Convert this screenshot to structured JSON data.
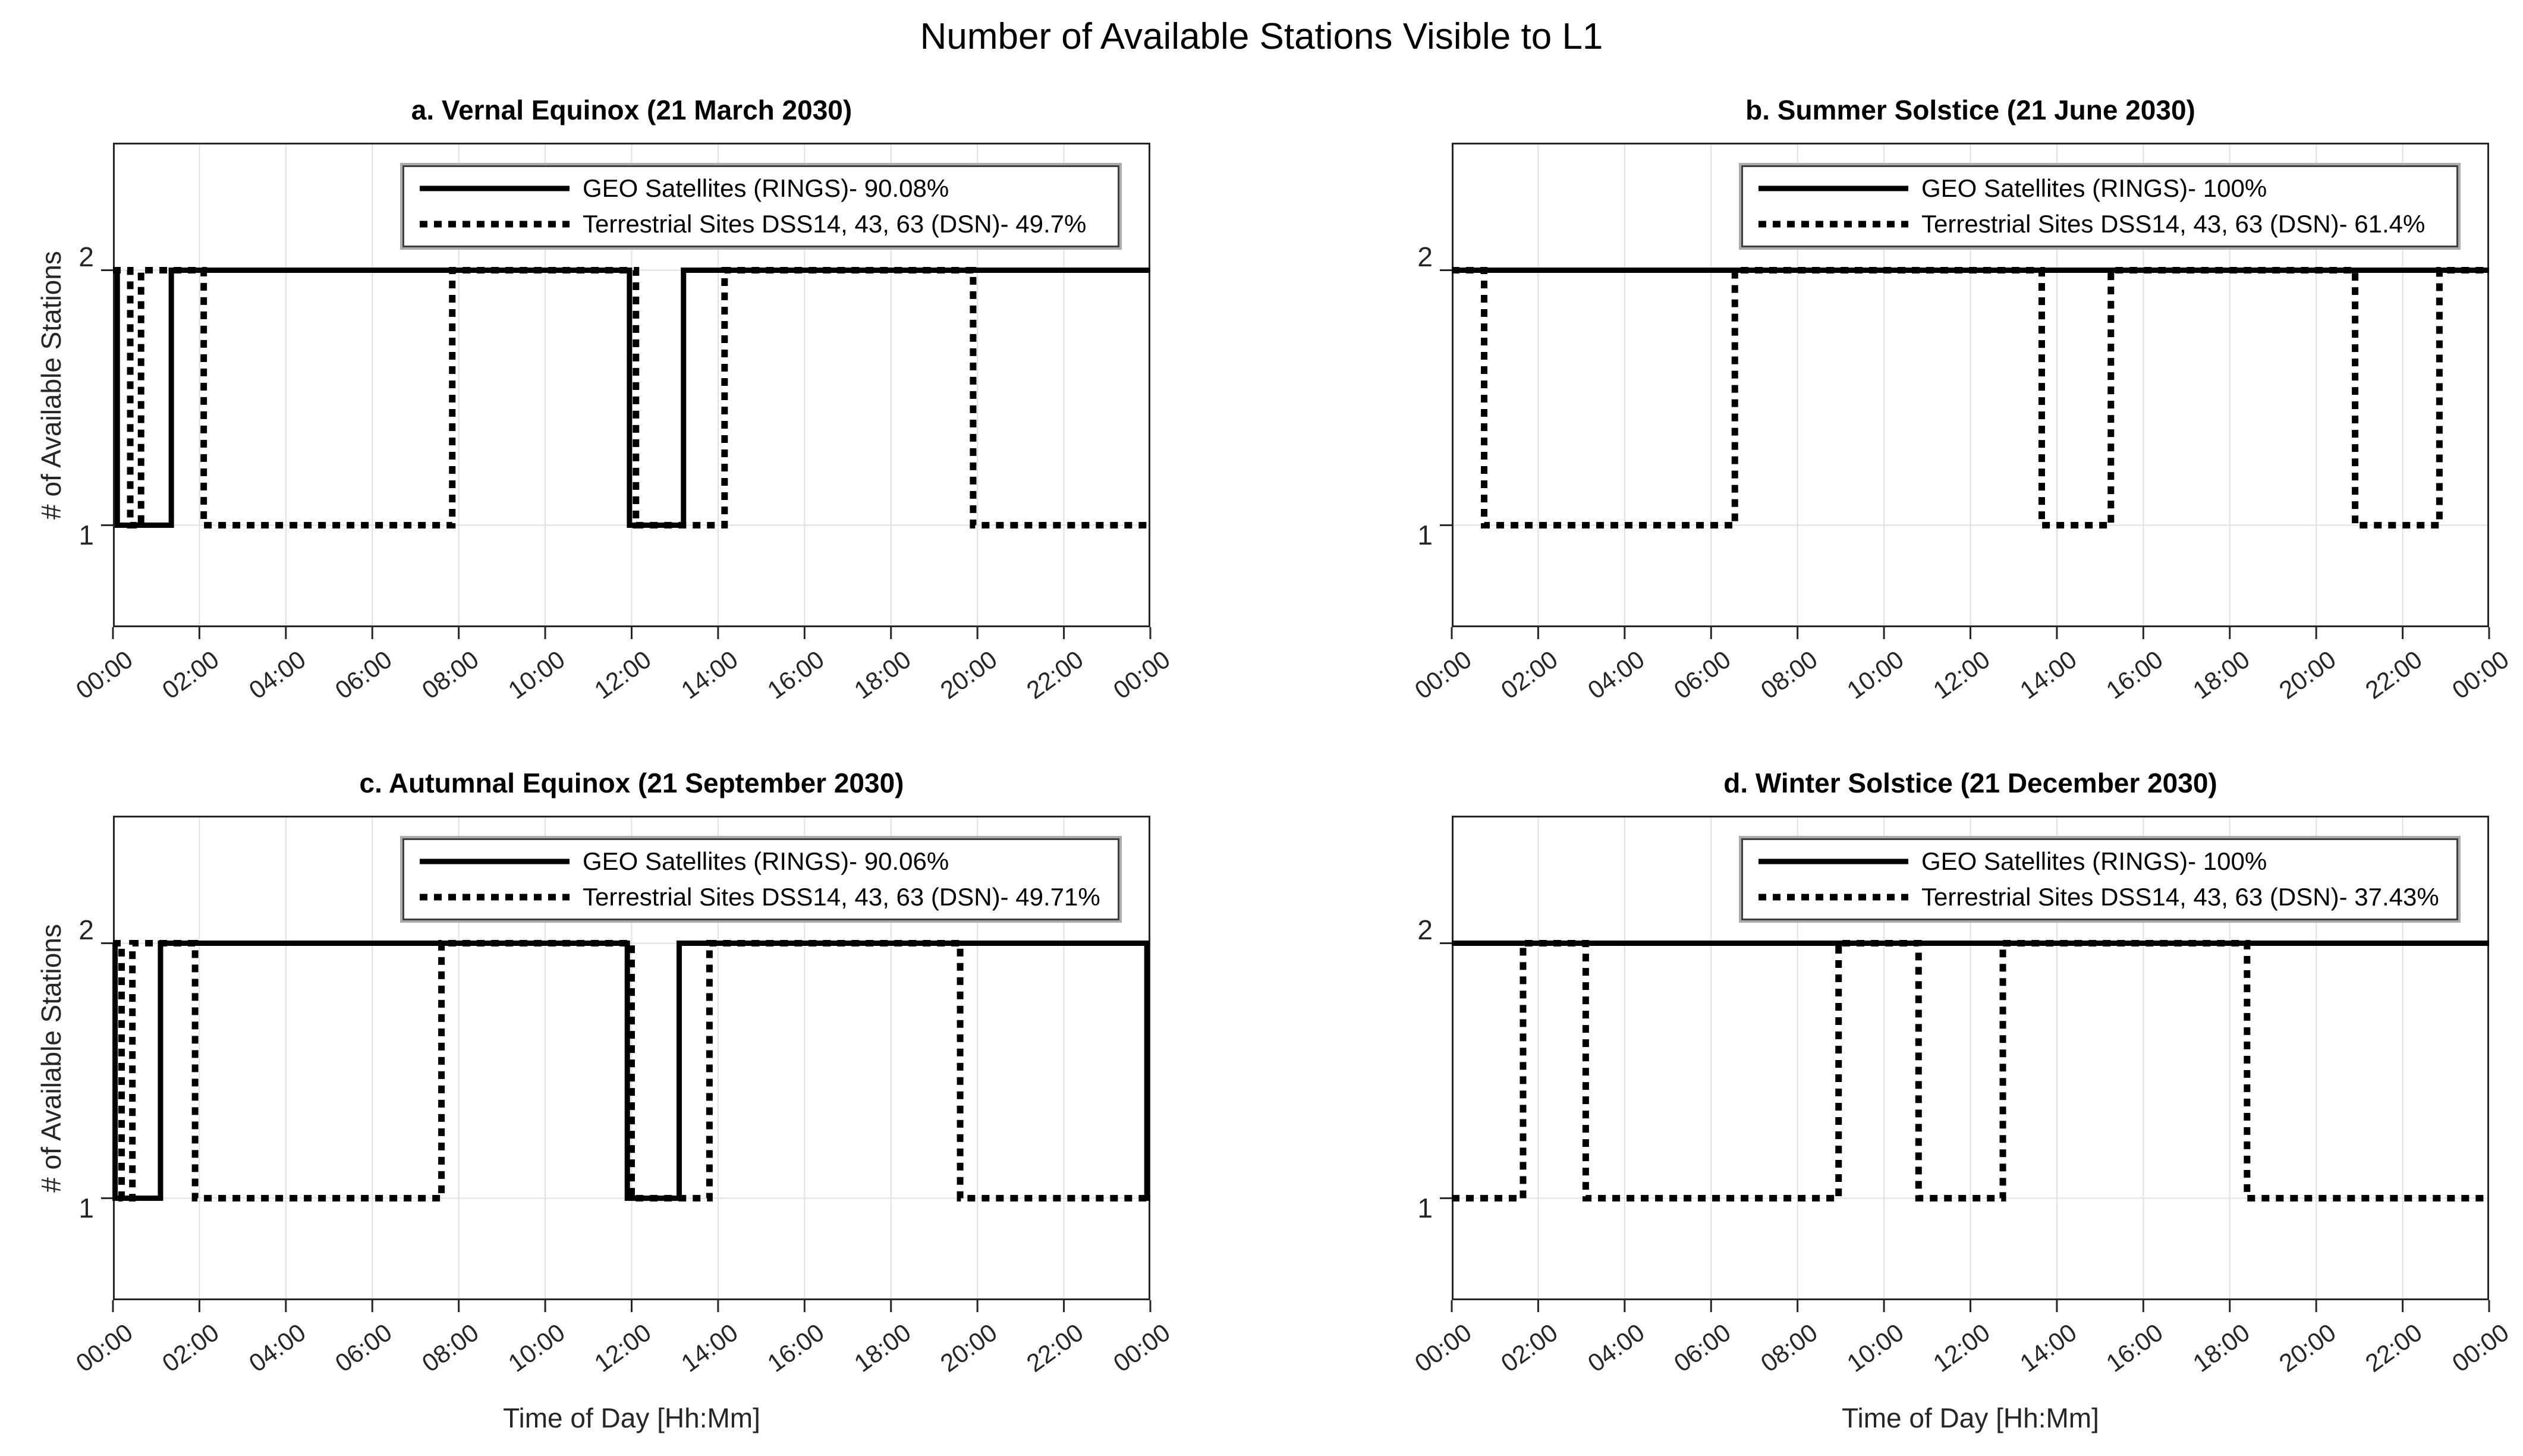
{
  "figure_title": "Number of Available Stations Visible to L1",
  "axes": {
    "x_label": "Time of Day [Hh:Mm]",
    "y_label": "# of Available Stations",
    "x_tick_labels": [
      "00:00",
      "02:00",
      "04:00",
      "06:00",
      "08:00",
      "10:00",
      "12:00",
      "14:00",
      "16:00",
      "18:00",
      "20:00",
      "22:00",
      "00:00"
    ],
    "y_tick_labels": [
      "2",
      "1"
    ],
    "x_range_hours": [
      0,
      24
    ],
    "x_tick_step_hours": 2,
    "y_limits": [
      0.6,
      2.5
    ],
    "grid": "vertical gridlines every 2 hours, horizontal gridlines at y=1 and y=2"
  },
  "colors": {
    "background": "#ffffff",
    "line": "#000000",
    "grid": "#e0e0e0",
    "axis": "#262626",
    "tick_text": "#262626",
    "legend_border": "#3f3f3f",
    "legend_shadow": "#ababab"
  },
  "chart_data": {
    "type": "line",
    "style": "step",
    "x_unit": "hours",
    "y_unit": "# of available stations",
    "subplots": [
      {
        "id": "a",
        "title": "a. Vernal Equinox (21 March 2030)",
        "legend": [
          {
            "label": "GEO Satellites (RINGS)- 90.08%",
            "line_style": "solid",
            "availability_percent": 90.08
          },
          {
            "label": "Terrestrial Sites DSS14, 43, 63 (DSN)- 49.7%",
            "line_style": "dotted",
            "availability_percent": 49.7
          }
        ],
        "series": [
          {
            "name": "GEO Satellites (RINGS)",
            "line_style": "solid",
            "steps_hour_level": [
              [
                0,
                2
              ],
              [
                0.1,
                1
              ],
              [
                1.35,
                2
              ],
              [
                11.95,
                1
              ],
              [
                13.2,
                2
              ]
            ]
          },
          {
            "name": "Terrestrial Sites DSS14, 43, 63 (DSN)",
            "line_style": "dotted",
            "steps_hour_level": [
              [
                0,
                2
              ],
              [
                0.4,
                1
              ],
              [
                0.65,
                2
              ],
              [
                2.1,
                1
              ],
              [
                7.85,
                2
              ],
              [
                12.1,
                1
              ],
              [
                14.15,
                2
              ],
              [
                19.9,
                1
              ]
            ]
          }
        ]
      },
      {
        "id": "b",
        "title": "b. Summer Solstice (21 June 2030)",
        "legend": [
          {
            "label": "GEO Satellites (RINGS)- 100%",
            "line_style": "solid",
            "availability_percent": 100
          },
          {
            "label": "Terrestrial Sites DSS14, 43, 63 (DSN)- 61.4%",
            "line_style": "dotted",
            "availability_percent": 61.4
          }
        ],
        "series": [
          {
            "name": "GEO Satellites (RINGS)",
            "line_style": "solid",
            "steps_hour_level": [
              [
                0,
                2
              ]
            ]
          },
          {
            "name": "Terrestrial Sites DSS14, 43, 63 (DSN)",
            "line_style": "dotted",
            "steps_hour_level": [
              [
                0,
                2
              ],
              [
                0.75,
                1
              ],
              [
                6.55,
                2
              ],
              [
                13.65,
                1
              ],
              [
                15.25,
                2
              ],
              [
                20.9,
                1
              ],
              [
                22.85,
                2
              ]
            ]
          }
        ]
      },
      {
        "id": "c",
        "title": "c. Autumnal Equinox (21 September 2030)",
        "legend": [
          {
            "label": "GEO Satellites (RINGS)- 90.06%",
            "line_style": "solid",
            "availability_percent": 90.06
          },
          {
            "label": "Terrestrial Sites DSS14, 43, 63 (DSN)- 49.71%",
            "line_style": "dotted",
            "availability_percent": 49.71
          }
        ],
        "series": [
          {
            "name": "GEO Satellites (RINGS)",
            "line_style": "solid",
            "steps_hour_level": [
              [
                0,
                2
              ],
              [
                0.05,
                1
              ],
              [
                1.1,
                2
              ],
              [
                11.9,
                1
              ],
              [
                13.1,
                2
              ],
              [
                23.92,
                1
              ]
            ]
          },
          {
            "name": "Terrestrial Sites DSS14, 43, 63 (DSN)",
            "line_style": "dotted",
            "steps_hour_level": [
              [
                0,
                2
              ],
              [
                0.2,
                1
              ],
              [
                0.45,
                2
              ],
              [
                1.9,
                1
              ],
              [
                7.6,
                2
              ],
              [
                12.0,
                1
              ],
              [
                13.8,
                2
              ],
              [
                19.6,
                1
              ]
            ]
          }
        ]
      },
      {
        "id": "d",
        "title": "d. Winter Solstice (21 December 2030)",
        "legend": [
          {
            "label": "GEO Satellites (RINGS)- 100%",
            "line_style": "solid",
            "availability_percent": 100
          },
          {
            "label": "Terrestrial Sites DSS14, 43, 63 (DSN)- 37.43%",
            "line_style": "dotted",
            "availability_percent": 37.43
          }
        ],
        "series": [
          {
            "name": "GEO Satellites (RINGS)",
            "line_style": "solid",
            "steps_hour_level": [
              [
                0,
                2
              ]
            ]
          },
          {
            "name": "Terrestrial Sites DSS14, 43, 63 (DSN)",
            "line_style": "dotted",
            "steps_hour_level": [
              [
                0,
                1
              ],
              [
                1.65,
                2
              ],
              [
                3.1,
                1
              ],
              [
                8.95,
                2
              ],
              [
                10.8,
                1
              ],
              [
                12.75,
                2
              ],
              [
                18.4,
                1
              ]
            ]
          }
        ]
      }
    ]
  }
}
